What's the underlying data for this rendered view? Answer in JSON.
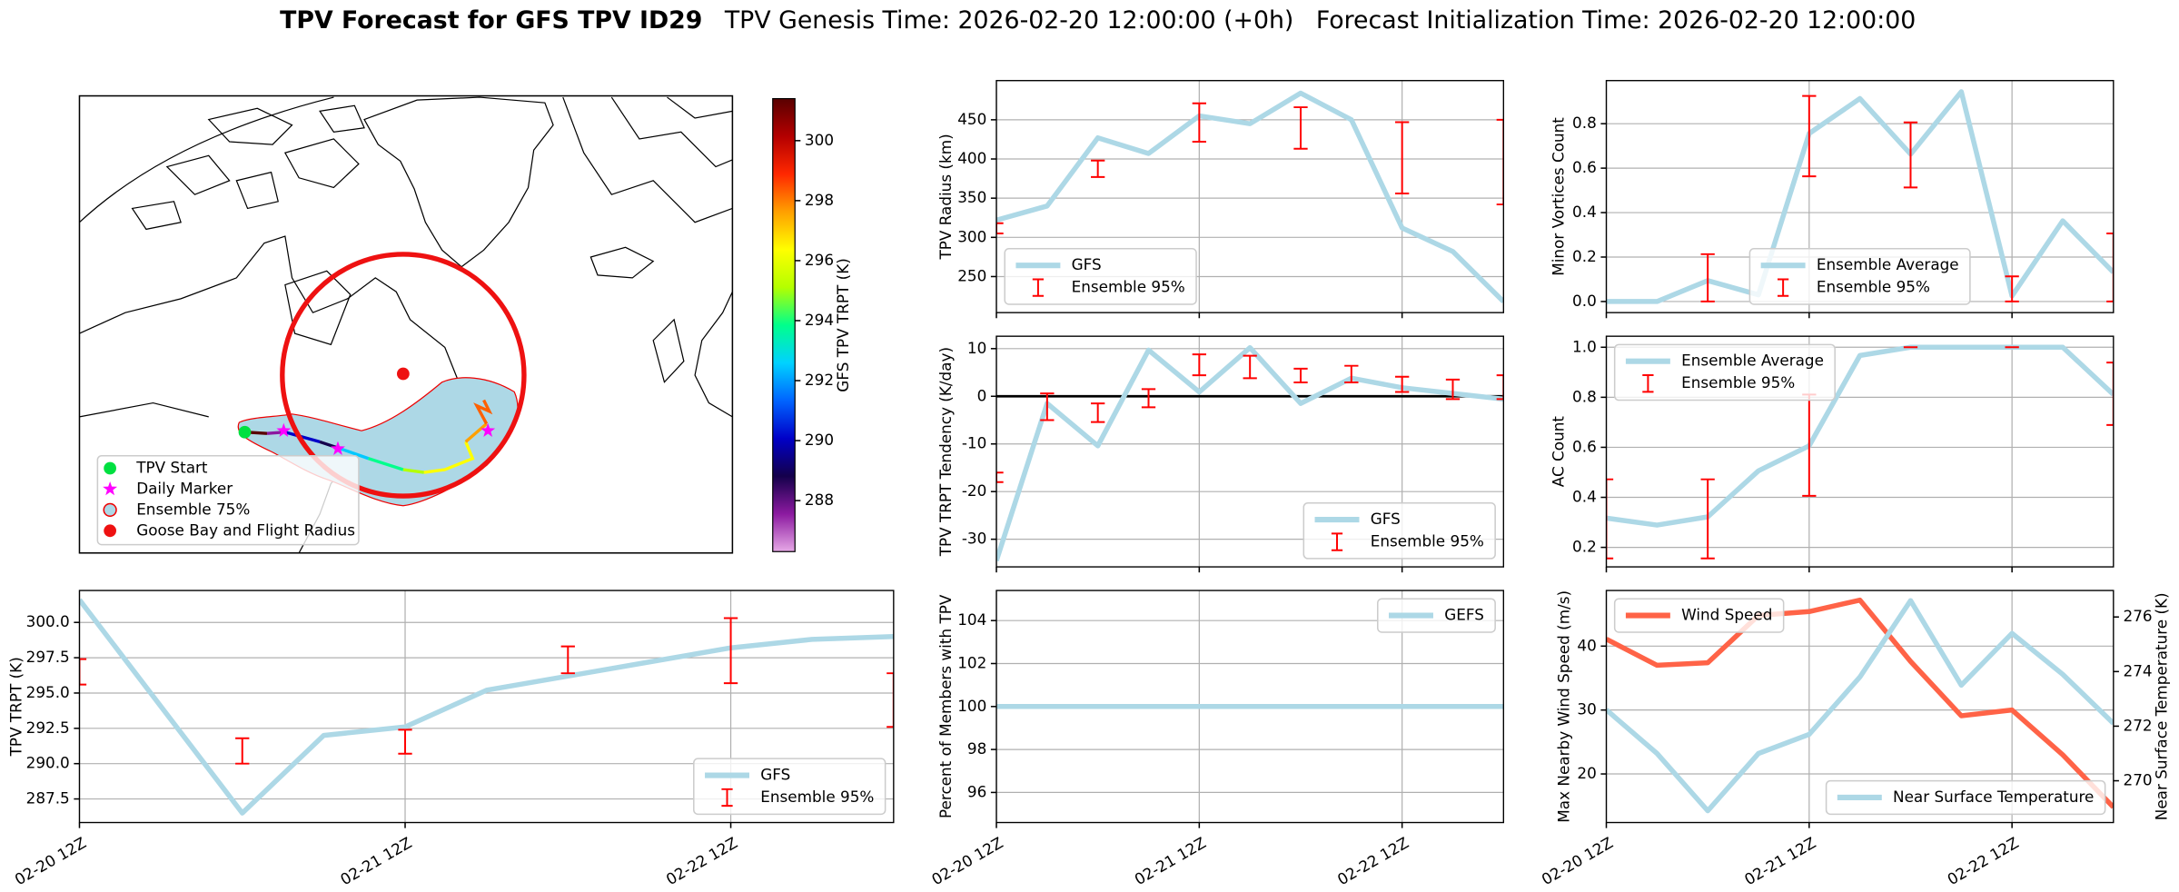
{
  "figure_title": [
    "TPV Forecast for GFS TPV ID29",
    "TPV Genesis Time: 2026-02-20 12:00:00 (+0h)",
    "Forecast Initialization Time: 2026-02-20 12:00:00"
  ],
  "chart_data": [
    {
      "type": "map",
      "legend": [
        "TPV Start",
        "Daily Marker",
        "Ensemble 75%",
        "Goose Bay and Flight Radius"
      ],
      "colorbar": {
        "label": "GFS TPV TRPT (K)",
        "lim": [
          286.3,
          301.4
        ],
        "ticks": [
          288,
          290,
          292,
          294,
          296,
          298,
          300
        ],
        "colormap": [
          "#e6a8e6",
          "#8c1aa0",
          "#14004b",
          "#0000c8",
          "#0064ff",
          "#00d2ff",
          "#00ff8c",
          "#b4ff00",
          "#ffff00",
          "#ffa000",
          "#ff2800",
          "#b40000",
          "#5a0000"
        ]
      }
    },
    {
      "type": "line",
      "ylabel": "TPV TRPT (K)",
      "grid": true,
      "legend": "lower right",
      "xlim": [
        0,
        60
      ],
      "xticks": [
        {
          "value": 0,
          "label": "02-20 12Z"
        },
        {
          "value": 24,
          "label": "02-21 12Z"
        },
        {
          "value": 48,
          "label": "02-22 12Z"
        }
      ],
      "ylim": [
        285.83,
        302.26
      ],
      "yticks": [
        287.5,
        {
          "value": 290,
          "label": "290.0"
        },
        292.5,
        {
          "value": 295,
          "label": "295.0"
        },
        297.5,
        {
          "value": 300,
          "label": "300.0"
        }
      ],
      "series": [
        {
          "name": "GFS",
          "color": "#add8e6",
          "x": [
            0,
            12,
            18,
            24,
            30,
            36,
            42,
            48,
            54,
            60
          ],
          "values": [
            301.6,
            286.5,
            292.0,
            292.6,
            295.2,
            296.2,
            297.2,
            298.2,
            298.8,
            299.0
          ]
        },
        {
          "name": "Ensemble 95%",
          "type": "errorbar",
          "color": "#ff0000",
          "x": [
            0,
            12,
            24,
            36,
            48,
            60
          ],
          "low": [
            295.6,
            290.0,
            290.7,
            296.4,
            295.7,
            292.6
          ],
          "high": [
            297.4,
            291.8,
            292.4,
            298.3,
            300.3,
            296.4
          ]
        }
      ]
    },
    {
      "type": "line",
      "ylabel": "TPV Radius (km)",
      "grid": true,
      "legend": "lower left",
      "xlim": [
        0,
        60
      ],
      "xticks": [
        0,
        24,
        48
      ],
      "xticklabels": false,
      "ylim": [
        204,
        500
      ],
      "yticks": [
        250,
        300,
        350,
        400,
        450
      ],
      "series": [
        {
          "name": "GFS",
          "color": "#add8e6",
          "x": [
            0,
            6,
            12,
            18,
            24,
            30,
            36,
            42,
            48,
            54,
            60
          ],
          "values": [
            322,
            340,
            427,
            407,
            455,
            445,
            484,
            450,
            312,
            282,
            218
          ]
        },
        {
          "name": "Ensemble 95%",
          "type": "errorbar",
          "color": "#ff0000",
          "x": [
            0,
            12,
            24,
            36,
            48,
            60
          ],
          "low": [
            305,
            377,
            422,
            413,
            356,
            342
          ],
          "high": [
            318,
            398,
            471,
            466,
            447,
            450
          ]
        }
      ]
    },
    {
      "type": "line",
      "ylabel": "TPV TRPT Tendency (K/day)",
      "grid": true,
      "legend": "lower right",
      "hline": 0,
      "xlim": [
        0,
        60
      ],
      "xticks": [
        0,
        24,
        48
      ],
      "xticklabels": false,
      "ylim": [
        -35.8,
        12.6
      ],
      "yticks": [
        -30,
        -20,
        -10,
        0,
        10
      ],
      "series": [
        {
          "name": "GFS",
          "color": "#add8e6",
          "x": [
            0,
            6,
            12,
            18,
            24,
            30,
            36,
            42,
            48,
            54,
            60
          ],
          "values": [
            -34.5,
            -1.5,
            -10.4,
            9.7,
            0.9,
            10.2,
            -1.5,
            3.8,
            1.8,
            0.6,
            -0.6
          ]
        },
        {
          "name": "Ensemble 95%",
          "type": "errorbar",
          "color": "#ff0000",
          "x": [
            0,
            6,
            12,
            18,
            24,
            30,
            36,
            42,
            48,
            54,
            60
          ],
          "low": [
            -18,
            -5,
            -5.4,
            -2.3,
            4.4,
            3.8,
            2.9,
            2.9,
            0.9,
            -0.6,
            -0.6
          ],
          "high": [
            -16,
            0.6,
            -1.5,
            1.5,
            8.8,
            8.5,
            5.8,
            6.4,
            4.1,
            3.5,
            4.4
          ]
        }
      ]
    },
    {
      "type": "line",
      "ylabel": "Percent of Members with TPV",
      "grid": true,
      "legend": "upper right",
      "xlim": [
        0,
        60
      ],
      "xticks": [
        {
          "value": 0,
          "label": "02-20 12Z"
        },
        {
          "value": 24,
          "label": "02-21 12Z"
        },
        {
          "value": 48,
          "label": "02-22 12Z"
        }
      ],
      "ylim": [
        94.6,
        105.4
      ],
      "yticks": [
        96,
        98,
        100,
        102,
        104
      ],
      "series": [
        {
          "name": "GEFS",
          "color": "#add8e6",
          "x": [
            0,
            6,
            12,
            18,
            24,
            30,
            36,
            42,
            48,
            54,
            60
          ],
          "values": [
            100,
            100,
            100,
            100,
            100,
            100,
            100,
            100,
            100,
            100,
            100
          ]
        }
      ]
    },
    {
      "type": "line",
      "ylabel": "Minor Vortices Count",
      "grid": true,
      "legend": "lower center",
      "xlim": [
        0,
        60
      ],
      "xticks": [
        0,
        24,
        48
      ],
      "xticklabels": false,
      "ylim": [
        -0.05,
        0.994
      ],
      "yticks": [
        {
          "value": 0,
          "label": "0.0"
        },
        0.2,
        0.4,
        0.6,
        0.8
      ],
      "series": [
        {
          "name": "Ensemble Average",
          "color": "#add8e6",
          "x": [
            0,
            6,
            12,
            18,
            24,
            30,
            36,
            42,
            48,
            54,
            60
          ],
          "values": [
            0,
            0,
            0.094,
            0.03,
            0.756,
            0.913,
            0.663,
            0.944,
            0.025,
            0.363,
            0.131
          ]
        },
        {
          "name": "Ensemble 95%",
          "type": "errorbar",
          "color": "#ff0000",
          "x": [
            12,
            24,
            36,
            48,
            60
          ],
          "low": [
            0,
            0.563,
            0.513,
            0,
            0
          ],
          "high": [
            0.213,
            0.925,
            0.806,
            0.113,
            0.306
          ]
        }
      ]
    },
    {
      "type": "line",
      "ylabel": "AC Count",
      "grid": true,
      "legend": "upper left",
      "xlim": [
        0,
        60
      ],
      "xticks": [
        0,
        24,
        48
      ],
      "xticklabels": false,
      "ylim": [
        0.122,
        1.044
      ],
      "yticks": [
        0.2,
        0.4,
        0.6,
        0.8,
        {
          "value": 1,
          "label": "1.0"
        }
      ],
      "series": [
        {
          "name": "Ensemble Average",
          "color": "#add8e6",
          "x": [
            0,
            6,
            12,
            18,
            24,
            30,
            36,
            42,
            48,
            54,
            60
          ],
          "values": [
            0.317,
            0.289,
            0.322,
            0.506,
            0.606,
            0.967,
            1.0,
            1.0,
            1.0,
            1.0,
            0.811
          ]
        },
        {
          "name": "Ensemble 95%",
          "type": "errorbar",
          "color": "#ff0000",
          "x": [
            0,
            12,
            24,
            36,
            48,
            60
          ],
          "low": [
            0.156,
            0.156,
            0.406,
            1.0,
            1.0,
            0.689
          ],
          "high": [
            0.472,
            0.472,
            0.811,
            1.0,
            1.0,
            0.939
          ]
        }
      ]
    },
    {
      "type": "line",
      "ylabel": "Max Nearby Wind Speed (m/s)",
      "ylabel_color": "#ff6347",
      "y2label": "Near Surface Temperature (K)",
      "y2label_color": "#4169e1",
      "grid": true,
      "legend": "upper left",
      "legend2": "lower right",
      "xlim": [
        0,
        60
      ],
      "xticks": [
        {
          "value": 0,
          "label": "02-20 12Z"
        },
        {
          "value": 24,
          "label": "02-21 12Z"
        },
        {
          "value": 48,
          "label": "02-22 12Z"
        }
      ],
      "ylim": [
        12.4,
        48.7
      ],
      "yticks": [
        20,
        30,
        40
      ],
      "y2lim": [
        268.47,
        276.97
      ],
      "y2ticks": [
        270,
        272,
        274,
        276
      ],
      "series": [
        {
          "name": "Wind Speed",
          "color": "#ff6347",
          "x": [
            0,
            6,
            12,
            18,
            24,
            30,
            36,
            42,
            48,
            54,
            60
          ],
          "values": [
            41.1,
            37.0,
            37.4,
            44.8,
            45.4,
            47.2,
            37.6,
            29.1,
            30.0,
            23.0,
            14.8
          ]
        },
        {
          "name": "Near Surface Temperature",
          "color": "#add8e6",
          "axis": "y2",
          "x": [
            0,
            6,
            12,
            18,
            24,
            30,
            36,
            42,
            48,
            54,
            60
          ],
          "values": [
            272.6,
            271.0,
            268.9,
            271.0,
            271.7,
            273.8,
            276.6,
            273.5,
            275.4,
            273.9,
            272.1
          ]
        }
      ]
    }
  ]
}
